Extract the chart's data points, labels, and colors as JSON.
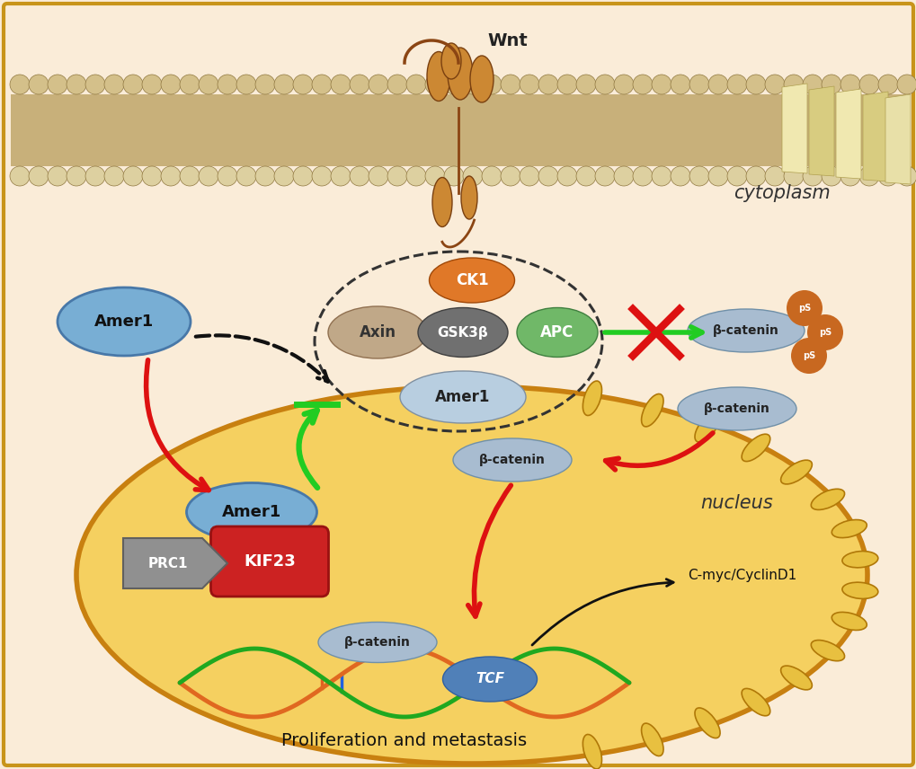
{
  "bg_color": "#faecd8",
  "border_color": "#c8941a",
  "figure_width": 10.2,
  "figure_height": 8.56,
  "dpi": 100,
  "arrow_red": "#dd1111",
  "arrow_green": "#22cc22",
  "arrow_black": "#111111",
  "cytoplasm_label": "cytoplasm",
  "nucleus_label": "nucleus",
  "wnt_label": "Wnt",
  "cmyc_text": "C-myc/CyclinD1",
  "proliferation_text": "Proliferation and metastasis"
}
